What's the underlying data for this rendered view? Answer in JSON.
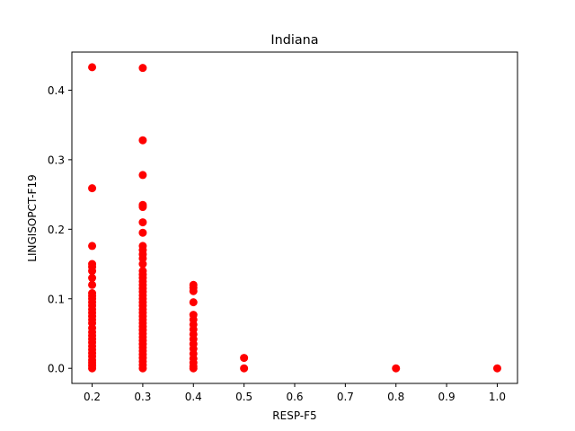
{
  "chart_data": {
    "type": "scatter",
    "title": "Indiana",
    "xlabel": "RESP-F5",
    "ylabel": "LINGISOPCT-F19",
    "xlim": [
      0.16,
      1.04
    ],
    "ylim": [
      -0.0217,
      0.4548
    ],
    "xticks": [
      "0.2",
      "0.3",
      "0.4",
      "0.5",
      "0.6",
      "0.7",
      "0.8",
      "0.9",
      "1.0"
    ],
    "yticks": [
      "0.0",
      "0.1",
      "0.2",
      "0.3",
      "0.4"
    ],
    "grid": false,
    "marker_color": "#ff0000",
    "points": [
      {
        "x": 0.2,
        "y": 0.433
      },
      {
        "x": 0.2,
        "y": 0.259
      },
      {
        "x": 0.2,
        "y": 0.176
      },
      {
        "x": 0.2,
        "y": 0.15
      },
      {
        "x": 0.2,
        "y": 0.146
      },
      {
        "x": 0.2,
        "y": 0.14
      },
      {
        "x": 0.2,
        "y": 0.13
      },
      {
        "x": 0.2,
        "y": 0.12
      },
      {
        "x": 0.2,
        "y": 0.108
      },
      {
        "x": 0.2,
        "y": 0.104
      },
      {
        "x": 0.2,
        "y": 0.1
      },
      {
        "x": 0.2,
        "y": 0.095
      },
      {
        "x": 0.2,
        "y": 0.09
      },
      {
        "x": 0.2,
        "y": 0.085
      },
      {
        "x": 0.2,
        "y": 0.08
      },
      {
        "x": 0.2,
        "y": 0.075
      },
      {
        "x": 0.2,
        "y": 0.07
      },
      {
        "x": 0.2,
        "y": 0.065
      },
      {
        "x": 0.2,
        "y": 0.058
      },
      {
        "x": 0.2,
        "y": 0.052
      },
      {
        "x": 0.2,
        "y": 0.047
      },
      {
        "x": 0.2,
        "y": 0.042
      },
      {
        "x": 0.2,
        "y": 0.037
      },
      {
        "x": 0.2,
        "y": 0.032
      },
      {
        "x": 0.2,
        "y": 0.027
      },
      {
        "x": 0.2,
        "y": 0.022
      },
      {
        "x": 0.2,
        "y": 0.017
      },
      {
        "x": 0.2,
        "y": 0.012
      },
      {
        "x": 0.2,
        "y": 0.008
      },
      {
        "x": 0.2,
        "y": 0.004
      },
      {
        "x": 0.2,
        "y": 0.0
      },
      {
        "x": 0.3,
        "y": 0.432
      },
      {
        "x": 0.3,
        "y": 0.328
      },
      {
        "x": 0.3,
        "y": 0.278
      },
      {
        "x": 0.3,
        "y": 0.235
      },
      {
        "x": 0.3,
        "y": 0.232
      },
      {
        "x": 0.3,
        "y": 0.21
      },
      {
        "x": 0.3,
        "y": 0.195
      },
      {
        "x": 0.3,
        "y": 0.176
      },
      {
        "x": 0.3,
        "y": 0.17
      },
      {
        "x": 0.3,
        "y": 0.164
      },
      {
        "x": 0.3,
        "y": 0.158
      },
      {
        "x": 0.3,
        "y": 0.15
      },
      {
        "x": 0.3,
        "y": 0.14
      },
      {
        "x": 0.3,
        "y": 0.135
      },
      {
        "x": 0.3,
        "y": 0.13
      },
      {
        "x": 0.3,
        "y": 0.125
      },
      {
        "x": 0.3,
        "y": 0.12
      },
      {
        "x": 0.3,
        "y": 0.115
      },
      {
        "x": 0.3,
        "y": 0.11
      },
      {
        "x": 0.3,
        "y": 0.105
      },
      {
        "x": 0.3,
        "y": 0.1
      },
      {
        "x": 0.3,
        "y": 0.095
      },
      {
        "x": 0.3,
        "y": 0.09
      },
      {
        "x": 0.3,
        "y": 0.085
      },
      {
        "x": 0.3,
        "y": 0.08
      },
      {
        "x": 0.3,
        "y": 0.075
      },
      {
        "x": 0.3,
        "y": 0.07
      },
      {
        "x": 0.3,
        "y": 0.065
      },
      {
        "x": 0.3,
        "y": 0.06
      },
      {
        "x": 0.3,
        "y": 0.055
      },
      {
        "x": 0.3,
        "y": 0.05
      },
      {
        "x": 0.3,
        "y": 0.045
      },
      {
        "x": 0.3,
        "y": 0.04
      },
      {
        "x": 0.3,
        "y": 0.035
      },
      {
        "x": 0.3,
        "y": 0.03
      },
      {
        "x": 0.3,
        "y": 0.025
      },
      {
        "x": 0.3,
        "y": 0.02
      },
      {
        "x": 0.3,
        "y": 0.015
      },
      {
        "x": 0.3,
        "y": 0.01
      },
      {
        "x": 0.3,
        "y": 0.005
      },
      {
        "x": 0.3,
        "y": 0.0
      },
      {
        "x": 0.4,
        "y": 0.12
      },
      {
        "x": 0.4,
        "y": 0.116
      },
      {
        "x": 0.4,
        "y": 0.111
      },
      {
        "x": 0.4,
        "y": 0.095
      },
      {
        "x": 0.4,
        "y": 0.077
      },
      {
        "x": 0.4,
        "y": 0.07
      },
      {
        "x": 0.4,
        "y": 0.063
      },
      {
        "x": 0.4,
        "y": 0.056
      },
      {
        "x": 0.4,
        "y": 0.049
      },
      {
        "x": 0.4,
        "y": 0.042
      },
      {
        "x": 0.4,
        "y": 0.035
      },
      {
        "x": 0.4,
        "y": 0.028
      },
      {
        "x": 0.4,
        "y": 0.021
      },
      {
        "x": 0.4,
        "y": 0.014
      },
      {
        "x": 0.4,
        "y": 0.008
      },
      {
        "x": 0.4,
        "y": 0.003
      },
      {
        "x": 0.4,
        "y": 0.0
      },
      {
        "x": 0.5,
        "y": 0.015
      },
      {
        "x": 0.5,
        "y": 0.0
      },
      {
        "x": 0.8,
        "y": 0.0
      },
      {
        "x": 1.0,
        "y": 0.0
      }
    ]
  }
}
